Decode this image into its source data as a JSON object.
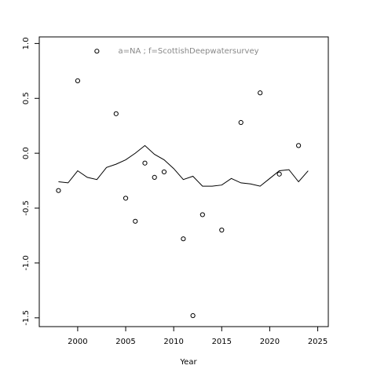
{
  "chart_data": {
    "type": "scatter",
    "annotation": "a=NA  ;  f=ScottishDeepwatersurvey",
    "x_label": "Year",
    "xlim": [
      1996,
      2026.1
    ],
    "xticks": [
      2000,
      2005,
      2010,
      2015,
      2020,
      2025
    ],
    "ylim": [
      -1.58,
      1.06
    ],
    "yticks": [
      {
        "value": -1.5,
        "label": "-1.5"
      },
      {
        "value": -1,
        "label": "-1.0"
      },
      {
        "value": -0.5,
        "label": "-0.5"
      },
      {
        "value": 0,
        "label": "0.0"
      },
      {
        "value": 0.5,
        "label": "0.5"
      },
      {
        "value": 1,
        "label": "1.0"
      }
    ],
    "series": [
      {
        "kind": "points",
        "color": "#000000",
        "x": [
          1998,
          2000,
          2002,
          2004,
          2005,
          2006,
          2007,
          2008,
          2009,
          2011,
          2012,
          2013,
          2015,
          2017,
          2019,
          2021,
          2023
        ],
        "values": [
          -0.34,
          0.66,
          0.93,
          0.36,
          -0.41,
          -0.62,
          -0.09,
          -0.22,
          -0.17,
          -0.78,
          -1.48,
          -0.56,
          -0.7,
          0.28,
          0.55,
          -0.19,
          0.07
        ]
      },
      {
        "kind": "line",
        "color": "#000000",
        "x": [
          1998,
          1999,
          2000,
          2001,
          2002,
          2003,
          2004,
          2005,
          2006,
          2007,
          2008,
          2009,
          2010,
          2011,
          2012,
          2013,
          2014,
          2015,
          2016,
          2017,
          2018,
          2019,
          2020,
          2021,
          2022,
          2023,
          2024
        ],
        "values": [
          -0.26,
          -0.27,
          -0.16,
          -0.22,
          -0.24,
          -0.13,
          -0.1,
          -0.06,
          0,
          0.07,
          -0.01,
          -0.06,
          -0.14,
          -0.24,
          -0.21,
          -0.3,
          -0.3,
          -0.29,
          -0.23,
          -0.27,
          -0.28,
          -0.3,
          -0.23,
          -0.16,
          -0.15,
          -0.26,
          -0.16
        ]
      }
    ]
  }
}
